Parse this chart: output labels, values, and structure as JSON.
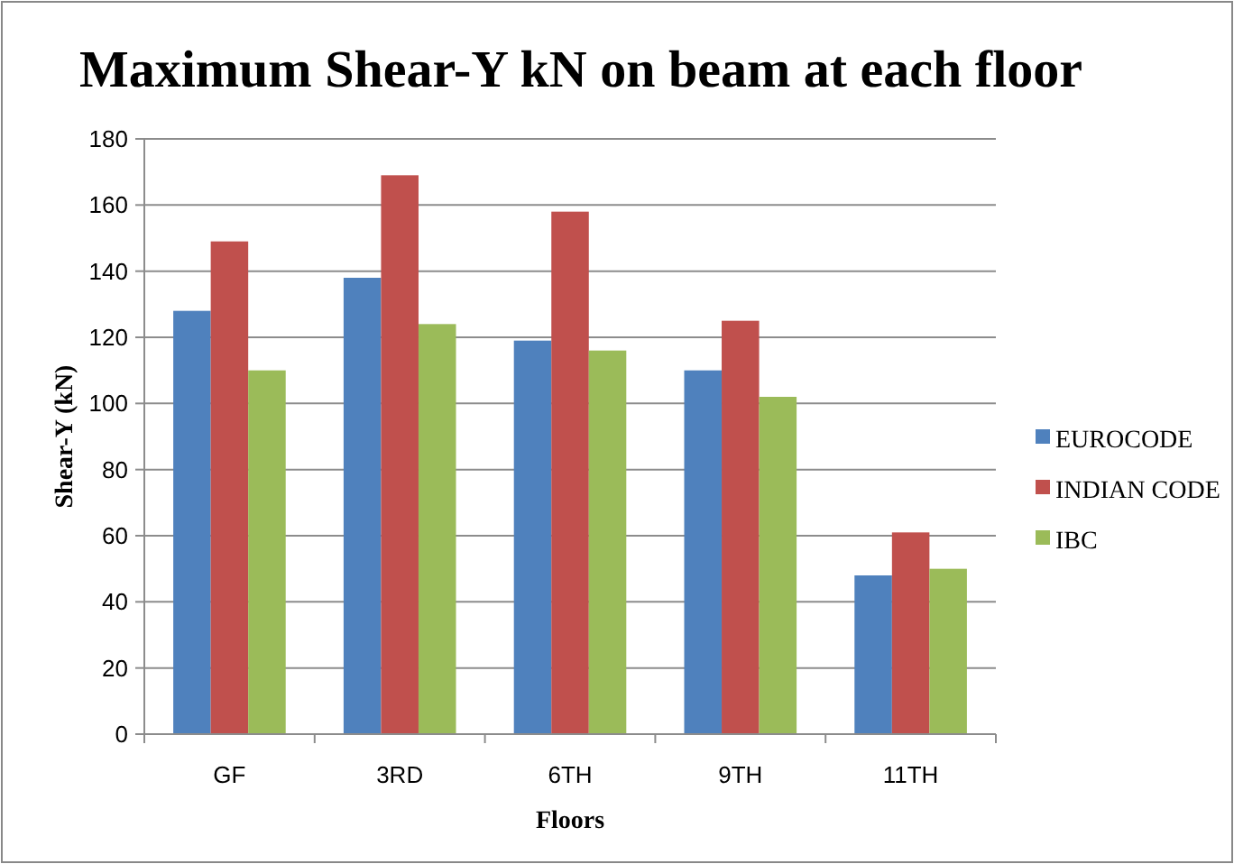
{
  "chart_data": {
    "type": "bar",
    "title": "Maximum Shear-Y kN on beam at each floor",
    "xlabel": "Floors",
    "ylabel": "Shear-Y (kN)",
    "categories": [
      "GF",
      "3RD",
      "6TH",
      "9TH",
      "11TH"
    ],
    "series": [
      {
        "name": "EUROCODE",
        "color": "#4f81bd",
        "values": [
          128,
          138,
          119,
          110,
          48
        ]
      },
      {
        "name": "INDIAN CODE",
        "color": "#c0504d",
        "values": [
          149,
          169,
          158,
          125,
          61
        ]
      },
      {
        "name": "IBC",
        "color": "#9bbb59",
        "values": [
          110,
          124,
          116,
          102,
          50
        ]
      }
    ],
    "ylim": [
      0,
      180
    ],
    "yticks": [
      0,
      20,
      40,
      60,
      80,
      100,
      120,
      140,
      160,
      180
    ],
    "grid": "y",
    "legend": "right"
  }
}
